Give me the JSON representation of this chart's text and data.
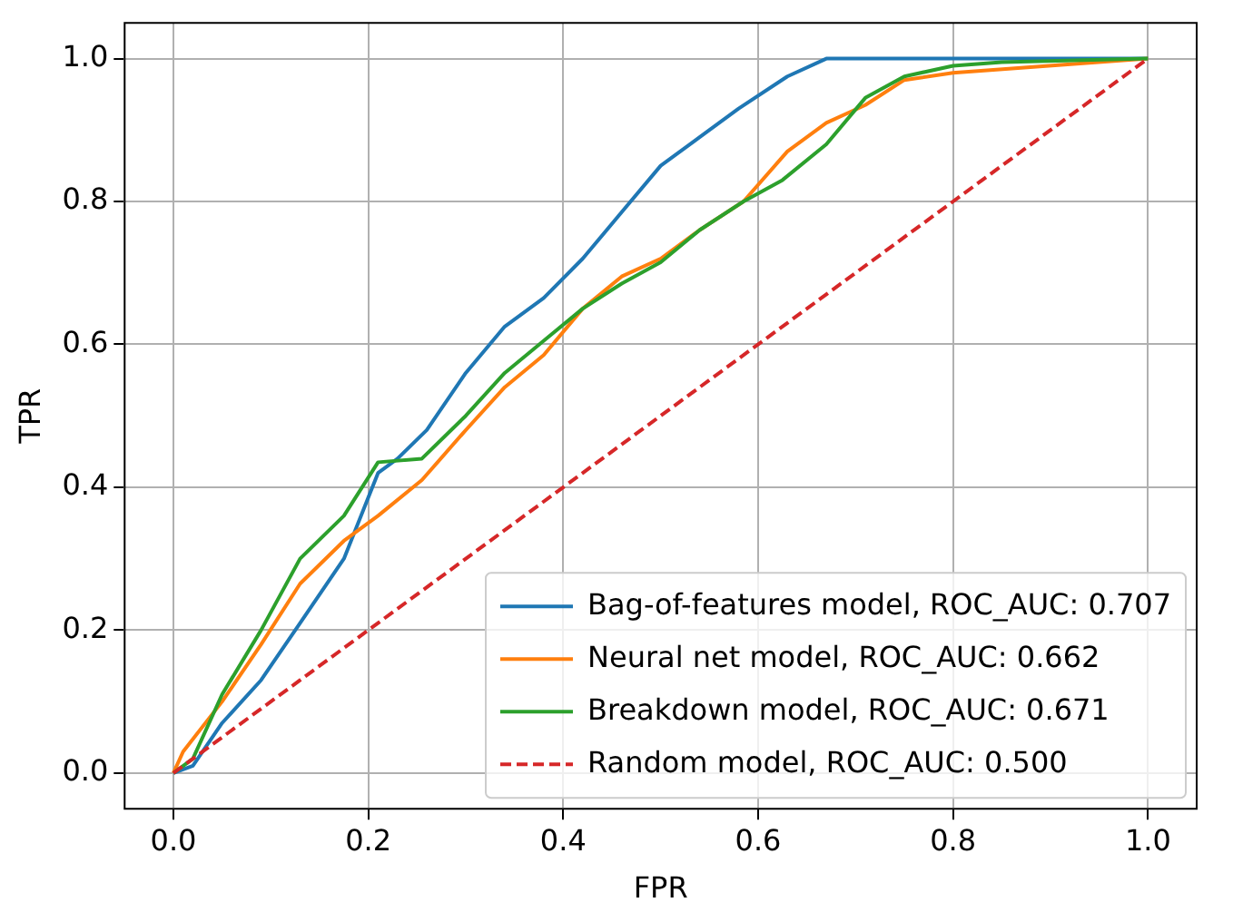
{
  "chart_data": {
    "type": "line",
    "xlabel": "FPR",
    "ylabel": "TPR",
    "xlim": [
      -0.05,
      1.05
    ],
    "ylim": [
      -0.05,
      1.05
    ],
    "xticks": [
      {
        "value": 0,
        "label": "0.0"
      },
      {
        "value": 0.2,
        "label": "0.2"
      },
      {
        "value": 0.4,
        "label": "0.4"
      },
      {
        "value": 0.6,
        "label": "0.6"
      },
      {
        "value": 0.8,
        "label": "0.8"
      },
      {
        "value": 1,
        "label": "1.0"
      }
    ],
    "yticks": [
      {
        "value": 0,
        "label": "0.0"
      },
      {
        "value": 0.2,
        "label": "0.2"
      },
      {
        "value": 0.4,
        "label": "0.4"
      },
      {
        "value": 0.6,
        "label": "0.6"
      },
      {
        "value": 0.8,
        "label": "0.8"
      },
      {
        "value": 1,
        "label": "1.0"
      }
    ],
    "grid": true,
    "legend": "bottom right",
    "marker": "none",
    "series": [
      {
        "name": "Bag-of-features model, ROC_AUC: 0.707",
        "color": "#1f77b4",
        "x": [
          0,
          0.02,
          0.05,
          0.09,
          0.13,
          0.175,
          0.21,
          0.23,
          0.26,
          0.3,
          0.34,
          0.38,
          0.42,
          0.46,
          0.5,
          0.54,
          0.58,
          0.63,
          0.67,
          1
        ],
        "values": [
          0,
          0.01,
          0.07,
          0.13,
          0.21,
          0.3,
          0.42,
          0.44,
          0.48,
          0.56,
          0.625,
          0.665,
          0.72,
          0.785,
          0.85,
          0.89,
          0.93,
          0.975,
          1,
          1
        ]
      },
      {
        "name": "Neural net model, ROC_AUC: 0.662",
        "color": "#ff7f0e",
        "x": [
          0,
          0.01,
          0.05,
          0.09,
          0.13,
          0.175,
          0.21,
          0.255,
          0.3,
          0.34,
          0.38,
          0.42,
          0.46,
          0.5,
          0.54,
          0.585,
          0.63,
          0.67,
          0.71,
          0.75,
          0.8,
          1
        ],
        "values": [
          0,
          0.03,
          0.1,
          0.18,
          0.265,
          0.325,
          0.36,
          0.41,
          0.48,
          0.54,
          0.585,
          0.65,
          0.695,
          0.72,
          0.76,
          0.8,
          0.87,
          0.91,
          0.935,
          0.97,
          0.98,
          1
        ]
      },
      {
        "name": "Breakdown model, ROC_AUC: 0.671",
        "color": "#2ca02c",
        "x": [
          0,
          0.02,
          0.05,
          0.09,
          0.13,
          0.175,
          0.21,
          0.255,
          0.3,
          0.34,
          0.38,
          0.42,
          0.46,
          0.5,
          0.54,
          0.585,
          0.625,
          0.67,
          0.71,
          0.75,
          0.8,
          0.85,
          1
        ],
        "values": [
          0,
          0.02,
          0.11,
          0.2,
          0.3,
          0.36,
          0.435,
          0.44,
          0.5,
          0.56,
          0.605,
          0.65,
          0.685,
          0.715,
          0.76,
          0.8,
          0.83,
          0.88,
          0.945,
          0.975,
          0.99,
          0.995,
          1
        ]
      },
      {
        "name": "Random model, ROC_AUC: 0.500",
        "color": "#d62728",
        "line_style": "dashed",
        "x": [
          0,
          1
        ],
        "values": [
          0,
          1
        ]
      }
    ]
  }
}
